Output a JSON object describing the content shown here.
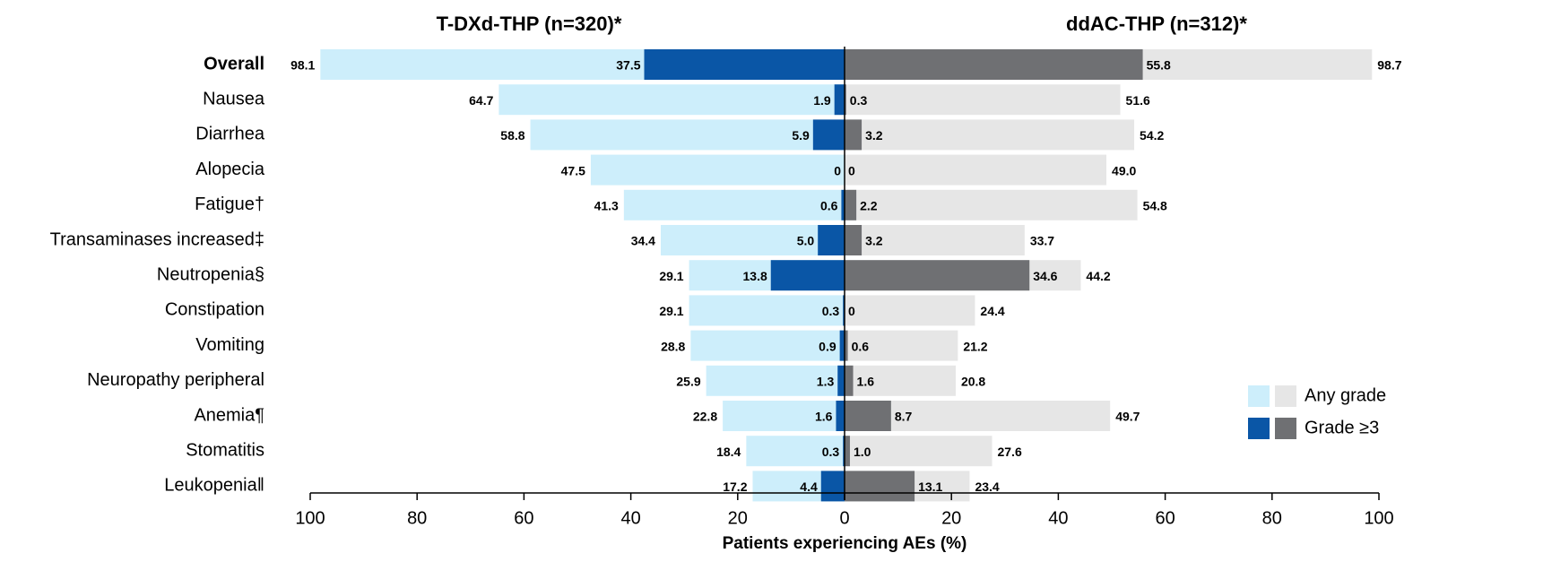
{
  "chart_data": {
    "type": "bar",
    "sides": [
      "T-DXd-THP (n=320)*",
      "ddAC-THP (n=312)*"
    ],
    "side_colors": [
      "#1560aa",
      "#8a8a8a"
    ],
    "categories": [
      "Overall",
      "Nausea",
      "Diarrhea",
      "Alopecia",
      "Fatigue†",
      "Transaminases increased‡",
      "Neutropenia§",
      "Constipation",
      "Vomiting",
      "Neuropathy peripheral",
      "Anemia¶",
      "Stomatitis",
      "Leukopenia‖"
    ],
    "series": [
      {
        "name": "Any grade",
        "colors": [
          "#cdeefb",
          "#e6e6e6"
        ],
        "values": [
          [
            98.1,
            64.7,
            58.8,
            47.5,
            41.3,
            34.4,
            29.1,
            29.1,
            28.8,
            25.9,
            22.8,
            18.4,
            17.2
          ],
          [
            98.7,
            51.6,
            54.2,
            49.0,
            54.8,
            33.7,
            44.2,
            24.4,
            21.2,
            20.8,
            49.7,
            27.6,
            23.4
          ]
        ],
        "value_labels": [
          [
            "98.1",
            "64.7",
            "58.8",
            "47.5",
            "41.3",
            "34.4",
            "29.1",
            "29.1",
            "28.8",
            "25.9",
            "22.8",
            "18.4",
            "17.2"
          ],
          [
            "98.7",
            "51.6",
            "54.2",
            "49.0",
            "54.8",
            "33.7",
            "44.2",
            "24.4",
            "21.2",
            "20.8",
            "49.7",
            "27.6",
            "23.4"
          ]
        ]
      },
      {
        "name": "Grade ≥3",
        "colors": [
          "#0a56a6",
          "#6f7073"
        ],
        "values": [
          [
            37.5,
            1.9,
            5.9,
            0,
            0.6,
            5.0,
            13.8,
            0.3,
            0.9,
            1.3,
            1.6,
            0.3,
            4.4
          ],
          [
            55.8,
            0.3,
            3.2,
            0,
            2.2,
            3.2,
            34.6,
            0,
            0.6,
            1.6,
            8.7,
            1.0,
            13.1
          ]
        ],
        "value_labels": [
          [
            "37.5",
            "1.9",
            "5.9",
            "0",
            "0.6",
            "5.0",
            "13.8",
            "0.3",
            "0.9",
            "1.3",
            "1.6",
            "0.3",
            "4.4"
          ],
          [
            "55.8",
            "0.3",
            "3.2",
            "0",
            "2.2",
            "3.2",
            "34.6",
            "0",
            "0.6",
            "1.6",
            "8.7",
            "1.0",
            "13.1"
          ]
        ]
      }
    ],
    "xlabel": "Patients experiencing AEs (%)",
    "xlim": [
      0,
      100
    ],
    "xticks": [
      0,
      20,
      40,
      60,
      80,
      100
    ]
  }
}
